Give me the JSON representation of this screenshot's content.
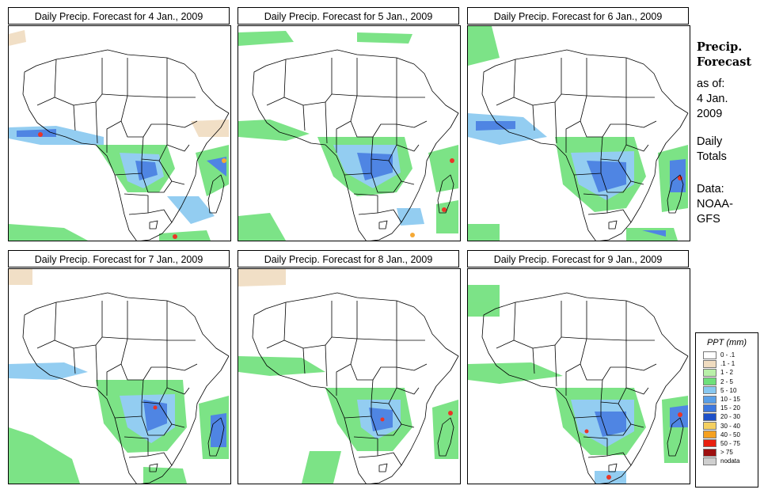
{
  "panels": [
    {
      "title": "Daily Precip. Forecast for  4 Jan., 2009"
    },
    {
      "title": "Daily Precip. Forecast for  5 Jan., 2009"
    },
    {
      "title": "Daily Precip. Forecast for  6 Jan., 2009"
    },
    {
      "title": "Daily Precip. Forecast for  7 Jan., 2009"
    },
    {
      "title": "Daily Precip. Forecast for  8 Jan., 2009"
    },
    {
      "title": "Daily Precip. Forecast for  9 Jan., 2009"
    }
  ],
  "sidebar": {
    "title_line1": "Precip.",
    "title_line2": "Forecast",
    "asof_line1": "as of:",
    "asof_line2": "4 Jan.",
    "asof_line3": "2009",
    "totals_line1": "Daily",
    "totals_line2": "Totals",
    "data_line1": "Data:",
    "data_line2": "NOAA-",
    "data_line3": "GFS"
  },
  "legend": {
    "title": "PPT (mm)",
    "items": [
      {
        "label": "0 - .1",
        "color": "#ffffff"
      },
      {
        "label": ".1 - 1",
        "color": "#f0dcc0"
      },
      {
        "label": "1 - 2",
        "color": "#b9f0a8"
      },
      {
        "label": "2 - 5",
        "color": "#6ee07a"
      },
      {
        "label": "5 - 10",
        "color": "#88c8f0"
      },
      {
        "label": "10 - 15",
        "color": "#5aa0e8"
      },
      {
        "label": "15 - 20",
        "color": "#3c78e0"
      },
      {
        "label": "20 - 30",
        "color": "#1e50c8"
      },
      {
        "label": "30 - 40",
        "color": "#f5d060"
      },
      {
        "label": "40 - 50",
        "color": "#f5a020"
      },
      {
        "label": "50 - 75",
        "color": "#e82010"
      },
      {
        "label": "> 75",
        "color": "#9e1010"
      },
      {
        "label": "nodata",
        "color": "#cfcfcf"
      }
    ]
  }
}
